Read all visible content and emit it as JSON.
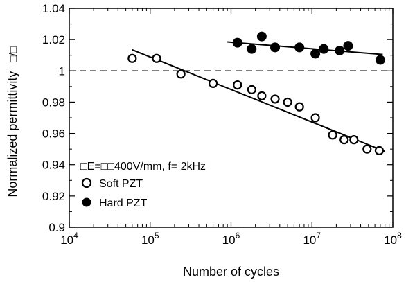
{
  "chart_data": {
    "type": "scatter",
    "title": "",
    "xlabel": "Number of cycles",
    "ylabel": "Normalized permittivity",
    "ylabel_suffix": "□/□",
    "xscale": "log",
    "xlim": [
      10000,
      100000000
    ],
    "ylim": [
      0.9,
      1.04
    ],
    "x_ticks": [
      {
        "value": 10000,
        "base": "10",
        "exp": "4"
      },
      {
        "value": 100000,
        "base": "10",
        "exp": "5"
      },
      {
        "value": 1000000,
        "base": "10",
        "exp": "6"
      },
      {
        "value": 10000000,
        "base": "10",
        "exp": "7"
      },
      {
        "value": 100000000,
        "base": "10",
        "exp": "8"
      }
    ],
    "y_ticks": [
      {
        "value": 0.9,
        "label": "0.9"
      },
      {
        "value": 0.92,
        "label": "0.92"
      },
      {
        "value": 0.94,
        "label": "0.94"
      },
      {
        "value": 0.96,
        "label": "0.96"
      },
      {
        "value": 0.98,
        "label": "0.98"
      },
      {
        "value": 1.0,
        "label": "1"
      },
      {
        "value": 1.02,
        "label": "1.02"
      },
      {
        "value": 1.04,
        "label": "1.04"
      }
    ],
    "reference_line": {
      "y": 1.0,
      "style": "dashed"
    },
    "annotation": "□E=□□400V/mm, f= 2kHz",
    "legend_position": "lower-left",
    "series": [
      {
        "name": "Soft PZT",
        "marker": "open-circle",
        "x": [
          60000,
          120000,
          240000,
          600000,
          1200000,
          1800000,
          2400000,
          3500000,
          5000000,
          7000000,
          11000000,
          18000000,
          25000000,
          33000000,
          48000000,
          68000000
        ],
        "y": [
          1.008,
          1.008,
          0.998,
          0.992,
          0.991,
          0.988,
          0.984,
          0.982,
          0.98,
          0.977,
          0.97,
          0.959,
          0.956,
          0.956,
          0.95,
          0.949
        ],
        "fit": {
          "x": [
            60000,
            80000000
          ],
          "y": [
            1.0135,
            0.9485
          ]
        }
      },
      {
        "name": "Hard PZT",
        "marker": "filled-circle",
        "x": [
          1200000,
          1800000,
          2400000,
          3500000,
          7000000,
          11000000,
          14000000,
          22000000,
          28000000,
          70000000
        ],
        "y": [
          1.018,
          1.014,
          1.022,
          1.015,
          1.015,
          1.011,
          1.014,
          1.013,
          1.016,
          1.007
        ],
        "fit": {
          "x": [
            900000,
            75000000
          ],
          "y": [
            1.0185,
            1.0105
          ]
        }
      }
    ]
  },
  "colors": {
    "ink": "#000000",
    "background": "#ffffff"
  }
}
